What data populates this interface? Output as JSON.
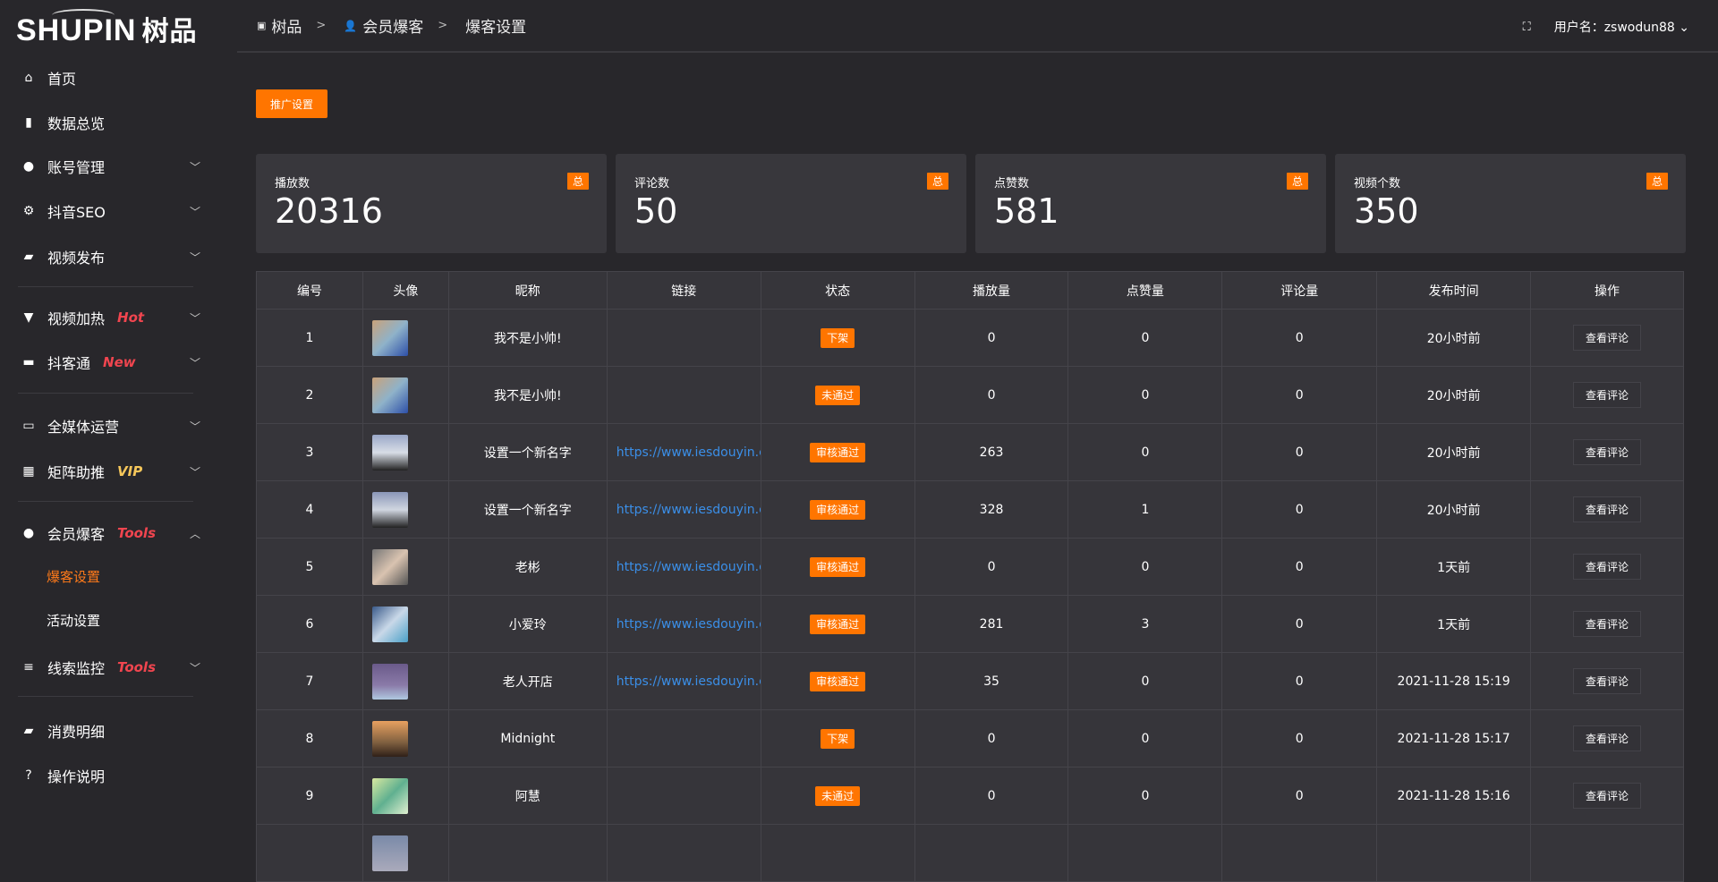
{
  "logo": {
    "text": "SHUPIN",
    "cn": "树品"
  },
  "sidebar": {
    "items": [
      {
        "label": "首页",
        "icon": "home-icon"
      },
      {
        "label": "数据总览",
        "icon": "bar-chart-icon"
      },
      {
        "label": "账号管理",
        "icon": "user-icon",
        "chevron": "down"
      },
      {
        "label": "抖音SEO",
        "icon": "gear-icon",
        "chevron": "down"
      },
      {
        "label": "视频发布",
        "icon": "camera-icon",
        "chevron": "down"
      },
      {
        "label": "视频加热",
        "icon": "signboard-icon",
        "tag": "Hot",
        "chevron": "down"
      },
      {
        "label": "抖客通",
        "icon": "chat-icon",
        "tag": "New",
        "chevron": "down"
      },
      {
        "label": "全媒体运营",
        "icon": "monitor-icon",
        "chevron": "down"
      },
      {
        "label": "矩阵助推",
        "icon": "grid-icon",
        "tag": "VIP",
        "chevron": "down"
      },
      {
        "label": "会员爆客",
        "icon": "user-icon",
        "tag": "Tools",
        "chevron": "up"
      },
      {
        "label": "线索监控",
        "icon": "sliders-icon",
        "tag": "Tools",
        "chevron": "down"
      },
      {
        "label": "消费明细",
        "icon": "wallet-icon"
      },
      {
        "label": "操作说明",
        "icon": "help-icon"
      }
    ],
    "sub_items": [
      {
        "label": "爆客设置",
        "active": true
      },
      {
        "label": "活动设置"
      }
    ]
  },
  "header": {
    "breadcrumb": [
      "树品",
      "会员爆客",
      "爆客设置"
    ],
    "user_label": "用户名：zswodun88"
  },
  "promo_button": "推广设置",
  "stats": [
    {
      "label": "播放数",
      "value": "20316",
      "badge": "总"
    },
    {
      "label": "评论数",
      "value": "50",
      "badge": "总"
    },
    {
      "label": "点赞数",
      "value": "581",
      "badge": "总"
    },
    {
      "label": "视频个数",
      "value": "350",
      "badge": "总"
    }
  ],
  "table": {
    "columns": [
      "编号",
      "头像",
      "昵称",
      "链接",
      "状态",
      "播放量",
      "点赞量",
      "评论量",
      "发布时间",
      "操作"
    ],
    "rows": [
      {
        "id": "1",
        "name": "我不是小帅!",
        "link": "",
        "status": "下架",
        "plays": "0",
        "likes": "0",
        "comments": "0",
        "time": "20小时前",
        "action": "查看评论"
      },
      {
        "id": "2",
        "name": "我不是小帅!",
        "link": "",
        "status": "未通过",
        "plays": "0",
        "likes": "0",
        "comments": "0",
        "time": "20小时前",
        "action": "查看评论"
      },
      {
        "id": "3",
        "name": "设置一个新名字",
        "link": "https://www.iesdouyin.c",
        "status": "审核通过",
        "plays": "263",
        "likes": "0",
        "comments": "0",
        "time": "20小时前",
        "action": "查看评论"
      },
      {
        "id": "4",
        "name": "设置一个新名字",
        "link": "https://www.iesdouyin.c",
        "status": "审核通过",
        "plays": "328",
        "likes": "1",
        "comments": "0",
        "time": "20小时前",
        "action": "查看评论"
      },
      {
        "id": "5",
        "name": "老彬",
        "link": "https://www.iesdouyin.c",
        "status": "审核通过",
        "plays": "0",
        "likes": "0",
        "comments": "0",
        "time": "1天前",
        "action": "查看评论"
      },
      {
        "id": "6",
        "name": "小爱玲",
        "link": "https://www.iesdouyin.c",
        "status": "审核通过",
        "plays": "281",
        "likes": "3",
        "comments": "0",
        "time": "1天前",
        "action": "查看评论"
      },
      {
        "id": "7",
        "name": "老人开店",
        "link": "https://www.iesdouyin.c",
        "status": "审核通过",
        "plays": "35",
        "likes": "0",
        "comments": "0",
        "time": "2021-11-28 15:19",
        "action": "查看评论"
      },
      {
        "id": "8",
        "name": "Midnight",
        "link": "",
        "status": "下架",
        "plays": "0",
        "likes": "0",
        "comments": "0",
        "time": "2021-11-28 15:17",
        "action": "查看评论"
      },
      {
        "id": "9",
        "name": "阿慧",
        "link": "",
        "status": "未通过",
        "plays": "0",
        "likes": "0",
        "comments": "0",
        "time": "2021-11-28 15:16",
        "action": "查看评论"
      },
      {
        "id": "",
        "name": "",
        "link": "",
        "status": "",
        "plays": "",
        "likes": "",
        "comments": "",
        "time": "",
        "action": ""
      }
    ]
  },
  "colors": {
    "accent": "#ff7500",
    "link": "#3b8fe8",
    "tag": "#f0454f",
    "vip": "#f5c65a"
  }
}
